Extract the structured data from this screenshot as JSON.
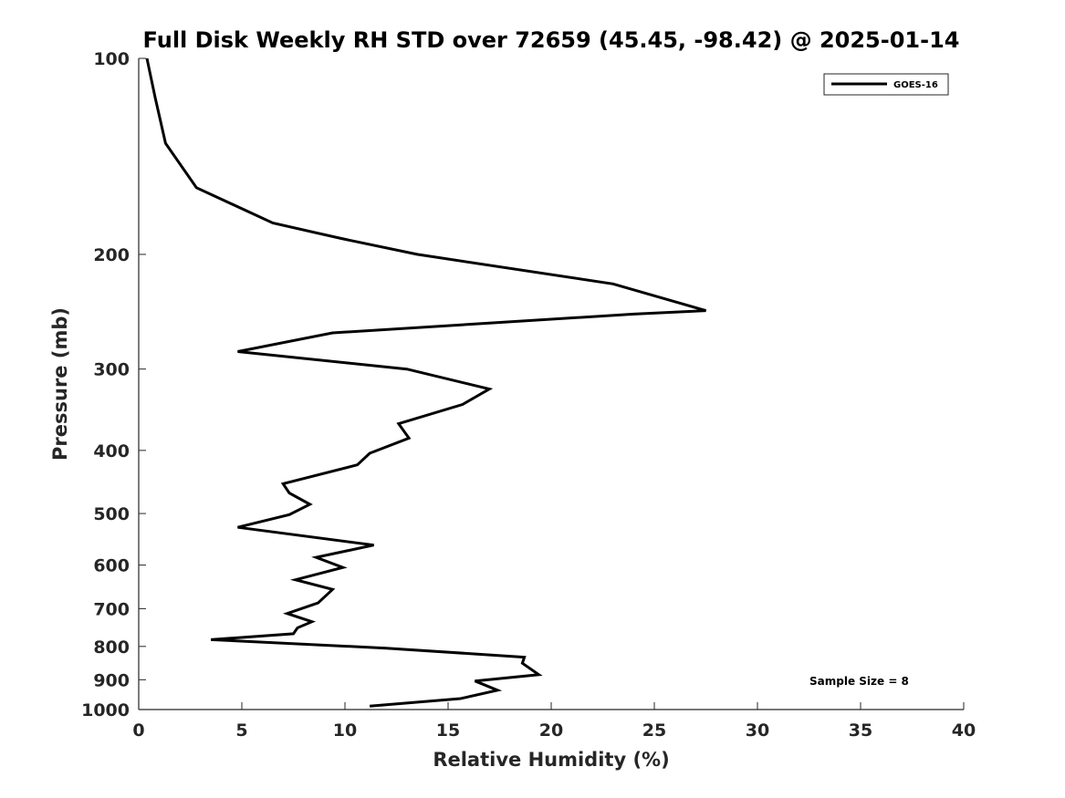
{
  "chart_data": {
    "type": "line",
    "title": "Full Disk Weekly RH STD over 72659 (45.45, -98.42) @ 2025-01-14",
    "xlabel": "Relative Humidity (%)",
    "ylabel": "Pressure (mb)",
    "xlim": [
      0,
      40
    ],
    "ylim": [
      100,
      1000
    ],
    "yscale": "log",
    "yreversed": true,
    "xticks": [
      0,
      5,
      10,
      15,
      20,
      25,
      30,
      35,
      40
    ],
    "yticks": [
      100,
      200,
      300,
      400,
      500,
      600,
      700,
      800,
      900,
      1000
    ],
    "xtick_labels": [
      "0",
      "5",
      "10",
      "15",
      "20",
      "25",
      "30",
      "35",
      "40"
    ],
    "ytick_labels": [
      "100",
      "200",
      "300",
      "400",
      "500",
      "600",
      "700",
      "800",
      "900",
      "1000"
    ],
    "grid": false,
    "legend_position": "top-right",
    "annotation": "Sample Size = 8",
    "series": [
      {
        "name": "GOES-16",
        "color": "#000000",
        "points": [
          [
            0.4,
            100
          ],
          [
            0.8,
            115
          ],
          [
            1.3,
            135
          ],
          [
            2.8,
            158
          ],
          [
            6.5,
            179
          ],
          [
            9.8,
            189
          ],
          [
            13.5,
            200
          ],
          [
            23.0,
            222
          ],
          [
            27.5,
            244
          ],
          [
            24.0,
            247
          ],
          [
            17.0,
            255
          ],
          [
            9.4,
            264
          ],
          [
            4.8,
            282
          ],
          [
            13.0,
            300
          ],
          [
            17.0,
            322
          ],
          [
            15.7,
            340
          ],
          [
            12.6,
            364
          ],
          [
            13.1,
            383
          ],
          [
            11.2,
            404
          ],
          [
            10.6,
            421
          ],
          [
            7.0,
            450
          ],
          [
            7.3,
            465
          ],
          [
            8.3,
            484
          ],
          [
            7.3,
            502
          ],
          [
            4.8,
            525
          ],
          [
            11.4,
            559
          ],
          [
            8.6,
            584
          ],
          [
            9.9,
            605
          ],
          [
            7.6,
            632
          ],
          [
            9.4,
            654
          ],
          [
            8.7,
            686
          ],
          [
            7.2,
            712
          ],
          [
            8.4,
            733
          ],
          [
            7.7,
            749
          ],
          [
            7.5,
            765
          ],
          [
            3.5,
            781
          ],
          [
            12.0,
            805
          ],
          [
            18.7,
            831
          ],
          [
            18.6,
            849
          ],
          [
            19.4,
            884
          ],
          [
            16.3,
            904
          ],
          [
            17.4,
            934
          ],
          [
            15.6,
            962
          ],
          [
            11.2,
            988
          ]
        ]
      }
    ]
  }
}
